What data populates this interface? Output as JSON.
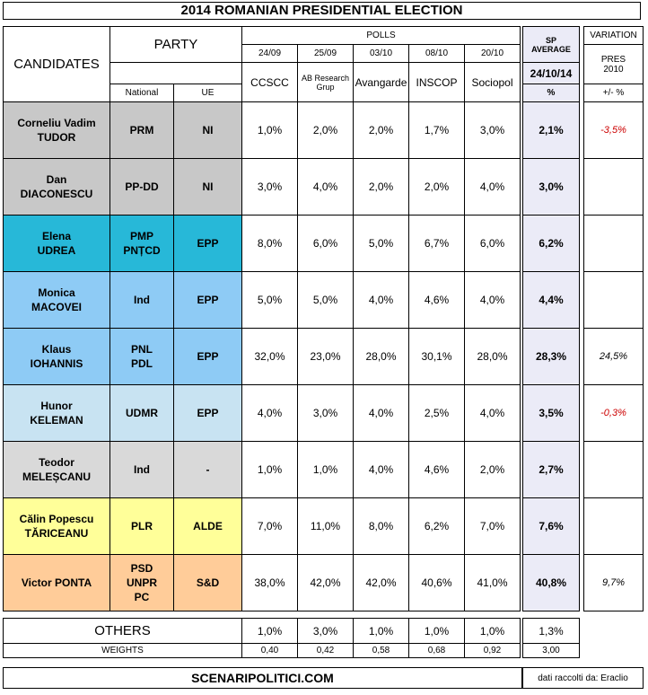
{
  "title": "2014 ROMANIAN PRESIDENTIAL ELECTION",
  "colors": {
    "gray": "#c8c8c8",
    "teal": "#27b8d8",
    "lightblue": "#8ecbf5",
    "paleblue": "#c8e3f2",
    "lightgray": "#d9d9d9",
    "yellow": "#ffff99",
    "orange": "#ffcc99",
    "avg_bg": "#ebebf7",
    "negative": "#cc0000"
  },
  "header": {
    "candidates": "CANDIDATES",
    "party": "PARTY",
    "national": "National",
    "ue": "UE",
    "polls": "POLLS",
    "dates": [
      "24/09",
      "25/09",
      "03/10",
      "08/10",
      "20/10"
    ],
    "pollsters": [
      "CCSCC",
      "AB Research Grup",
      "Avangarde",
      "INSCOP",
      "Sociopol"
    ],
    "sp": "SP",
    "average": "AVERAGE",
    "avg_date": "24/10/14",
    "avg_unit": "%",
    "variation": "VARIATION",
    "pres": "PRES",
    "pres_year": "2010",
    "var_unit": "+/- %"
  },
  "rows": [
    {
      "name1": "Corneliu Vadim",
      "name2": "TUDOR",
      "national1": "PRM",
      "national2": "",
      "national3": "",
      "ue": "NI",
      "color": "#c8c8c8",
      "polls": [
        "1,0%",
        "2,0%",
        "2,0%",
        "1,7%",
        "3,0%"
      ],
      "avg": "2,1%",
      "var": "-3,5%",
      "neg": true
    },
    {
      "name1": "Dan",
      "name2": "DIACONESCU",
      "national1": "PP-DD",
      "national2": "",
      "national3": "",
      "ue": "NI",
      "color": "#c8c8c8",
      "polls": [
        "3,0%",
        "4,0%",
        "2,0%",
        "2,0%",
        "4,0%"
      ],
      "avg": "3,0%",
      "var": "",
      "neg": false
    },
    {
      "name1": "Elena",
      "name2": "UDREA",
      "national1": "PMP",
      "national2": "PNȚCD",
      "national3": "",
      "ue": "EPP",
      "color": "#27b8d8",
      "polls": [
        "8,0%",
        "6,0%",
        "5,0%",
        "6,7%",
        "6,0%"
      ],
      "avg": "6,2%",
      "var": "",
      "neg": false
    },
    {
      "name1": "Monica",
      "name2": "MACOVEI",
      "national1": "Ind",
      "national2": "",
      "national3": "",
      "ue": "EPP",
      "color": "#8ecbf5",
      "polls": [
        "5,0%",
        "5,0%",
        "4,0%",
        "4,6%",
        "4,0%"
      ],
      "avg": "4,4%",
      "var": "",
      "neg": false
    },
    {
      "name1": "Klaus",
      "name2": "IOHANNIS",
      "national1": "PNL",
      "national2": "PDL",
      "national3": "",
      "ue": "EPP",
      "color": "#8ecbf5",
      "polls": [
        "32,0%",
        "23,0%",
        "28,0%",
        "30,1%",
        "28,0%"
      ],
      "avg": "28,3%",
      "var": "24,5%",
      "neg": false
    },
    {
      "name1": "Hunor",
      "name2": "KELEMAN",
      "national1": "UDMR",
      "national2": "",
      "national3": "",
      "ue": "EPP",
      "color": "#c8e3f2",
      "polls": [
        "4,0%",
        "3,0%",
        "4,0%",
        "2,5%",
        "4,0%"
      ],
      "avg": "3,5%",
      "var": "-0,3%",
      "neg": true
    },
    {
      "name1": "Teodor",
      "name2": "MELEȘCANU",
      "national1": "Ind",
      "national2": "",
      "national3": "",
      "ue": "-",
      "color": "#d9d9d9",
      "polls": [
        "1,0%",
        "1,0%",
        "4,0%",
        "4,6%",
        "2,0%"
      ],
      "avg": "2,7%",
      "var": "",
      "neg": false
    },
    {
      "name1": "Călin Popescu",
      "name2": "TĂRICEANU",
      "national1": "PLR",
      "national2": "",
      "national3": "",
      "ue": "ALDE",
      "color": "#ffff99",
      "polls": [
        "7,0%",
        "11,0%",
        "8,0%",
        "6,2%",
        "7,0%"
      ],
      "avg": "7,6%",
      "var": "",
      "neg": false
    },
    {
      "name1": "Victor PONTA",
      "name2": "",
      "national1": "PSD",
      "national2": "UNPR",
      "national3": "PC",
      "ue": "S&D",
      "color": "#ffcc99",
      "polls": [
        "38,0%",
        "42,0%",
        "42,0%",
        "40,6%",
        "41,0%"
      ],
      "avg": "40,8%",
      "var": "9,7%",
      "neg": false
    }
  ],
  "others": {
    "label": "OTHERS",
    "polls": [
      "1,0%",
      "3,0%",
      "1,0%",
      "1,0%",
      "1,0%"
    ],
    "avg": "1,3%"
  },
  "weights": {
    "label": "WEIGHTS",
    "values": [
      "0,40",
      "0,42",
      "0,58",
      "0,68",
      "0,92"
    ],
    "total": "3,00"
  },
  "footer": {
    "site": "SCENARIPOLITICI.COM",
    "credit": "dati raccolti da: Eraclio"
  }
}
